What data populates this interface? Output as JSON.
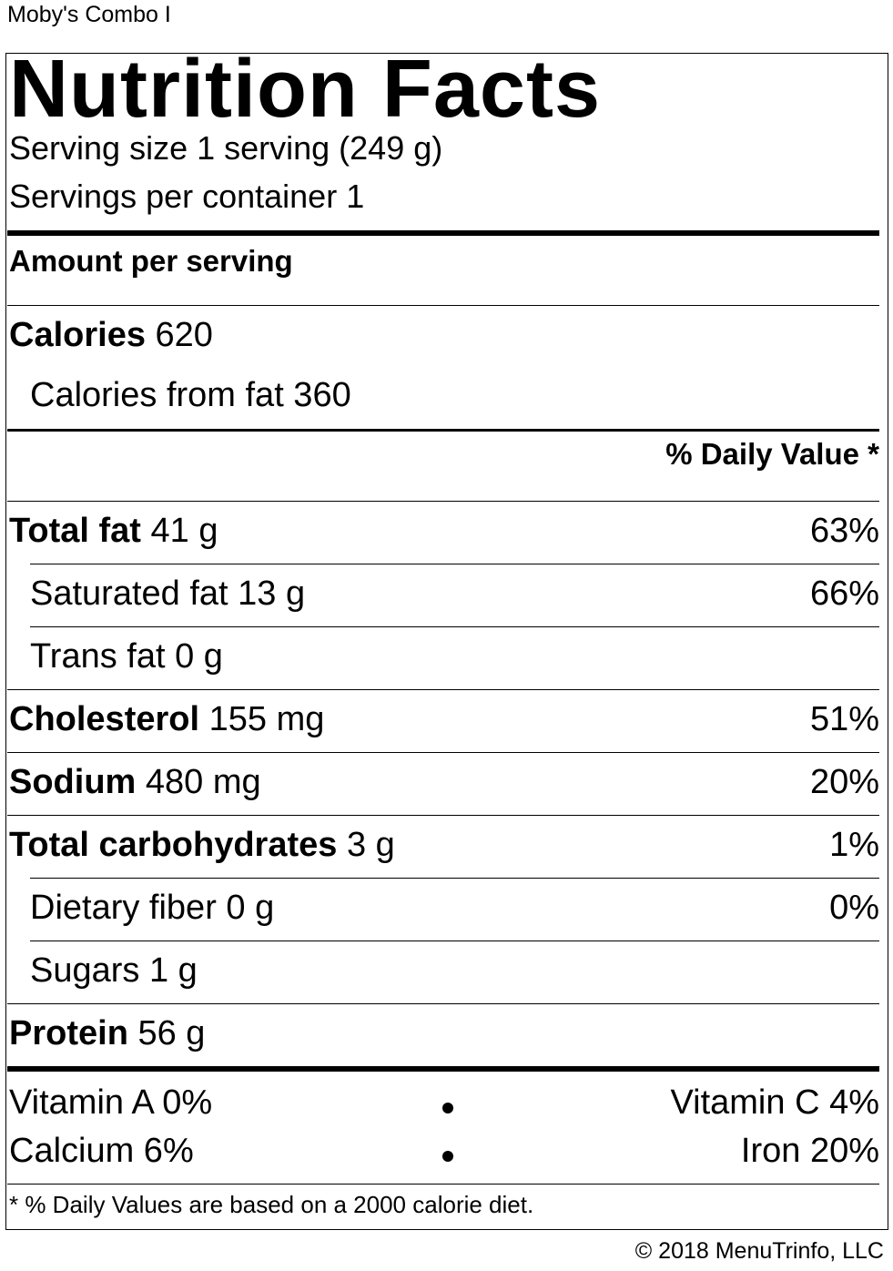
{
  "item_title": "Moby's Combo I",
  "label": {
    "title": "Nutrition Facts",
    "serving_size": "Serving size 1 serving (249 g)",
    "servings_per_container": "Servings per container 1",
    "amount_per_serving": "Amount per serving",
    "calories": {
      "label": "Calories",
      "value": "620"
    },
    "calories_from_fat": "Calories from fat 360",
    "daily_value_header": "% Daily Value *",
    "nutrients": [
      {
        "label": "Total fat",
        "amount": "41 g",
        "dv": "63%",
        "bold": true,
        "indent": false
      },
      {
        "label": "Saturated fat",
        "amount": "13 g",
        "dv": "66%",
        "bold": false,
        "indent": true
      },
      {
        "label": "Trans fat",
        "amount": "0 g",
        "dv": "",
        "bold": false,
        "indent": true
      },
      {
        "label": "Cholesterol",
        "amount": "155 mg",
        "dv": "51%",
        "bold": true,
        "indent": false
      },
      {
        "label": "Sodium",
        "amount": "480 mg",
        "dv": "20%",
        "bold": true,
        "indent": false
      },
      {
        "label": "Total carbohydrates",
        "amount": "3 g",
        "dv": "1%",
        "bold": true,
        "indent": false
      },
      {
        "label": "Dietary fiber",
        "amount": "0 g",
        "dv": "0%",
        "bold": false,
        "indent": true
      },
      {
        "label": "Sugars",
        "amount": "1 g",
        "dv": "",
        "bold": false,
        "indent": true
      },
      {
        "label": "Protein",
        "amount": "56 g",
        "dv": "",
        "bold": true,
        "indent": false
      }
    ],
    "vitamins": [
      {
        "left": "Vitamin A 0%",
        "right": "Vitamin C 4%"
      },
      {
        "left": "Calcium 6%",
        "right": "Iron 20%"
      }
    ],
    "footnote": "* % Daily Values are based on a 2000 calorie diet."
  },
  "copyright": "© 2018 MenuTrinfo, LLC"
}
